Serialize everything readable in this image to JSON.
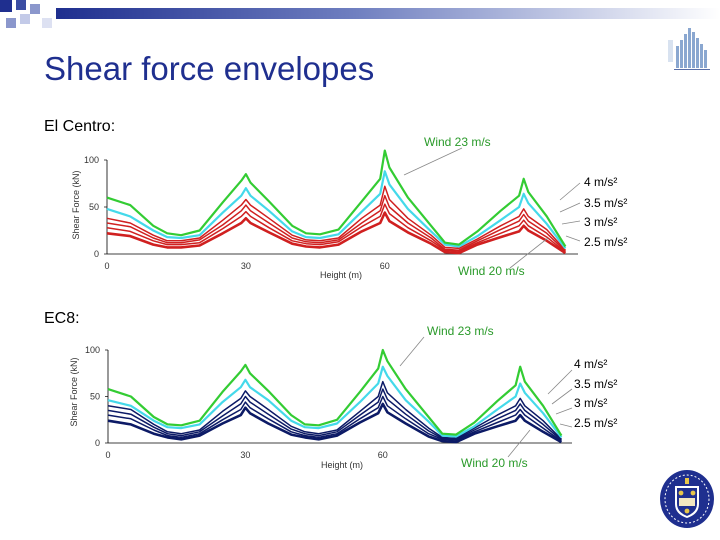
{
  "page": {
    "title": "Shear force envelopes",
    "section_1": "El Centro:",
    "section_2": "EC8:"
  },
  "colors": {
    "title": "#1f2f8f",
    "wind23": "#33cc33",
    "wind20": "#44d9ea",
    "elcentro_series": "#d02020",
    "ec8_series": "#0c1a66",
    "callout_text": "#2a9a2a"
  },
  "chart_data": [
    {
      "type": "line",
      "title": "El Centro",
      "xlabel": "Height (m)",
      "ylabel": "Shear Force (kN)",
      "xlim": [
        0,
        100
      ],
      "ylim": [
        0,
        100
      ],
      "xticks": [
        0,
        30,
        60
      ],
      "yticks": [
        0,
        50,
        100
      ],
      "x": [
        0,
        5,
        10,
        13,
        16,
        20,
        25,
        29,
        30,
        31,
        35,
        40,
        43,
        46,
        50,
        55,
        59,
        60,
        61,
        65,
        70,
        73,
        76,
        80,
        85,
        89,
        90,
        91,
        95,
        99
      ],
      "series": [
        {
          "name": "Wind 23 m/s",
          "values": [
            60,
            52,
            30,
            22,
            20,
            25,
            55,
            78,
            85,
            76,
            56,
            30,
            22,
            21,
            26,
            56,
            80,
            110,
            92,
            60,
            30,
            12,
            10,
            24,
            46,
            62,
            80,
            66,
            40,
            8
          ]
        },
        {
          "name": "Wind 20 m/s",
          "values": [
            48,
            40,
            25,
            18,
            17,
            20,
            44,
            62,
            70,
            62,
            46,
            24,
            18,
            17,
            21,
            45,
            64,
            88,
            74,
            48,
            24,
            10,
            8,
            19,
            36,
            50,
            64,
            54,
            32,
            6
          ]
        },
        {
          "name": "4 m/s²",
          "values": [
            38,
            33,
            20,
            14,
            14,
            17,
            36,
            52,
            58,
            52,
            38,
            20,
            15,
            14,
            17,
            38,
            52,
            72,
            58,
            38,
            20,
            7,
            6,
            16,
            30,
            40,
            48,
            40,
            26,
            4
          ]
        },
        {
          "name": "3.5 m/s²",
          "values": [
            33,
            29,
            17,
            12,
            12,
            15,
            31,
            46,
            52,
            46,
            33,
            17,
            13,
            12,
            15,
            33,
            46,
            62,
            50,
            33,
            17,
            5,
            4,
            14,
            26,
            35,
            42,
            35,
            22,
            3
          ]
        },
        {
          "name": "3 m/s²",
          "values": [
            28,
            24,
            14,
            10,
            10,
            12,
            27,
            40,
            45,
            40,
            28,
            14,
            11,
            10,
            13,
            29,
            40,
            53,
            43,
            28,
            14,
            4,
            3,
            12,
            22,
            30,
            36,
            30,
            18,
            2
          ]
        },
        {
          "name": "2.5 m/s²",
          "values": [
            22,
            19,
            10,
            7,
            7,
            9,
            22,
            33,
            38,
            33,
            23,
            11,
            8,
            7,
            10,
            24,
            33,
            44,
            35,
            23,
            11,
            2,
            1,
            10,
            18,
            24,
            30,
            25,
            14,
            1
          ]
        }
      ],
      "annotations": {
        "top": "Wind 23 m/s",
        "bottom": "Wind 20 m/s",
        "right": [
          "4 m/s²",
          "3.5 m/s²",
          "3 m/s²",
          "2.5 m/s²"
        ]
      }
    },
    {
      "type": "line",
      "title": "EC8",
      "xlabel": "Height (m)",
      "ylabel": "Shear Force (kN)",
      "xlim": [
        0,
        100
      ],
      "ylim": [
        0,
        100
      ],
      "xticks": [
        0,
        30,
        60
      ],
      "yticks": [
        0,
        50,
        100
      ],
      "x": [
        0,
        5,
        10,
        13,
        16,
        20,
        25,
        29,
        30,
        31,
        35,
        40,
        43,
        46,
        50,
        55,
        59,
        60,
        61,
        65,
        70,
        73,
        76,
        80,
        85,
        89,
        90,
        91,
        95,
        99
      ],
      "series": [
        {
          "name": "Wind 23 m/s",
          "values": [
            58,
            50,
            28,
            20,
            19,
            24,
            55,
            77,
            84,
            75,
            56,
            30,
            20,
            19,
            25,
            55,
            80,
            100,
            88,
            58,
            28,
            10,
            9,
            22,
            45,
            62,
            82,
            66,
            40,
            8
          ]
        },
        {
          "name": "Wind 20 m/s",
          "values": [
            46,
            40,
            24,
            17,
            16,
            20,
            44,
            60,
            68,
            60,
            46,
            24,
            17,
            16,
            21,
            44,
            64,
            82,
            72,
            46,
            23,
            8,
            7,
            18,
            36,
            50,
            64,
            54,
            32,
            6
          ]
        },
        {
          "name": "4 m/s²",
          "values": [
            40,
            36,
            20,
            12,
            10,
            14,
            34,
            48,
            56,
            50,
            36,
            18,
            12,
            10,
            14,
            34,
            50,
            66,
            54,
            36,
            16,
            6,
            5,
            16,
            30,
            40,
            48,
            40,
            24,
            4
          ]
        },
        {
          "name": "3.5 m/s²",
          "values": [
            35,
            31,
            17,
            10,
            8,
            12,
            29,
            42,
            50,
            44,
            31,
            15,
            10,
            8,
            12,
            30,
            44,
            58,
            47,
            31,
            13,
            5,
            4,
            14,
            26,
            35,
            42,
            35,
            20,
            3
          ]
        },
        {
          "name": "3 m/s²",
          "values": [
            30,
            26,
            14,
            8,
            6,
            10,
            25,
            36,
            44,
            38,
            26,
            12,
            8,
            6,
            10,
            26,
            38,
            50,
            40,
            26,
            10,
            4,
            3,
            12,
            22,
            30,
            36,
            30,
            16,
            2
          ]
        },
        {
          "name": "2.5 m/s²",
          "values": [
            24,
            20,
            10,
            6,
            4,
            8,
            21,
            30,
            38,
            32,
            21,
            9,
            6,
            4,
            8,
            22,
            32,
            42,
            33,
            21,
            7,
            2,
            1,
            10,
            18,
            24,
            30,
            24,
            12,
            1
          ]
        }
      ],
      "annotations": {
        "top": "Wind 23 m/s",
        "bottom": "Wind 20 m/s",
        "right": [
          "4 m/s²",
          "3.5 m/s²",
          "3 m/s²",
          "2.5 m/s²"
        ]
      }
    }
  ]
}
